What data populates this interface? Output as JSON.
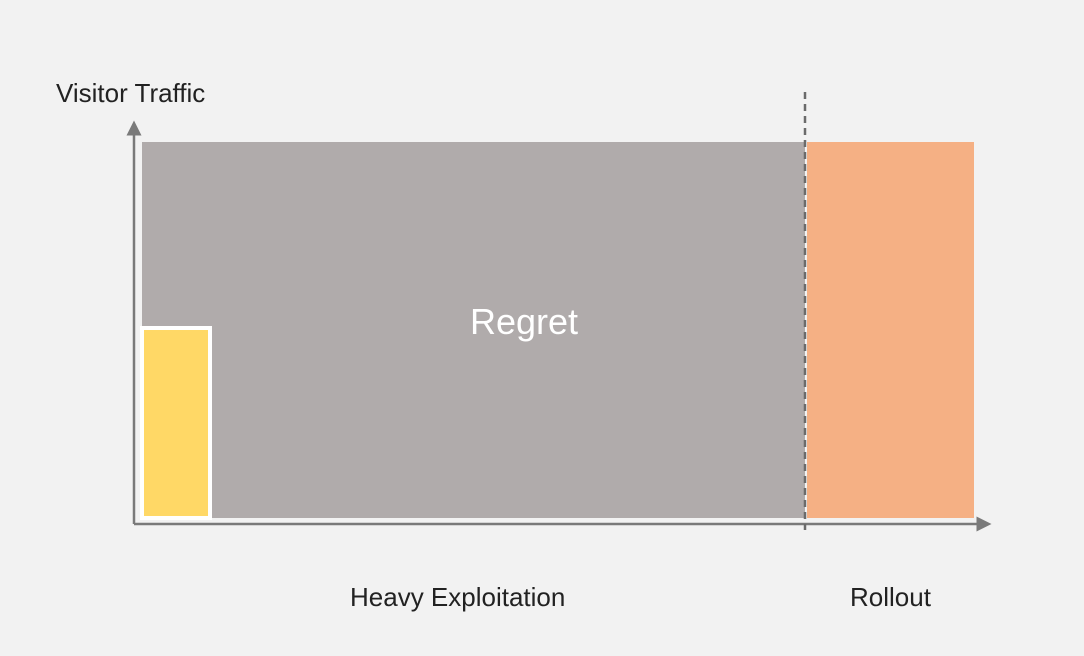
{
  "labels": {
    "y_axis": "Visitor Traffic",
    "regret": "Regret",
    "heavy_exploitation": "Heavy Exploitation",
    "rollout": "Rollout"
  },
  "colors": {
    "background": "#f2f2f2",
    "regret_fill": "#b0abab",
    "exploration_fill": "#ffd866",
    "rollout_fill": "#f5b084",
    "axis": "#7a7a7a",
    "divider": "#6b6b6b",
    "label_text": "#222222",
    "regret_text": "#ffffff"
  }
}
